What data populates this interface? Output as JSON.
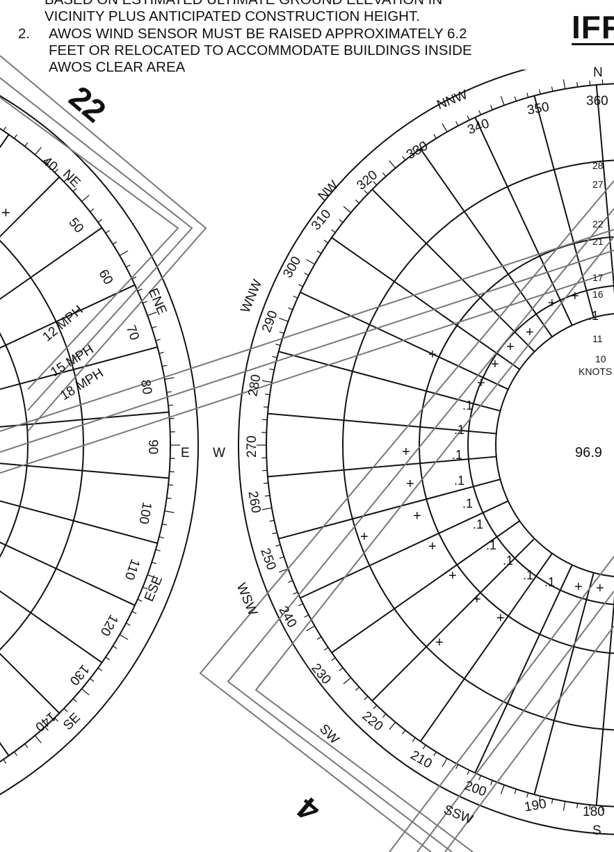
{
  "notes": {
    "line1": "BASED ON ESTIMATED ULTIMATE GROUND ELEVATION IN",
    "line2": "VICINITY PLUS ANTICIPATED CONSTRUCTION HEIGHT.",
    "item_num": "2.",
    "line3": "AWOS WIND SENSOR MUST BE RAISED APPROXIMATELY 6.2",
    "line4": "FEET OR RELOCATED TO ACCOMMODATE BUILDINGS INSIDE",
    "line5": "AWOS CLEAR AREA"
  },
  "header_fragment": "IFF",
  "runway_ends": {
    "left_upper": "22",
    "right_lower": "4"
  },
  "left_rose": {
    "degrees": [
      "40",
      "50",
      "60",
      "70",
      "80",
      "90",
      "100",
      "110",
      "120",
      "130",
      "140"
    ],
    "compass": [
      "NE",
      "ENE",
      "E",
      "ESE",
      "SE"
    ],
    "speeds": [
      "12 MPH",
      "15 MPH",
      "18 MPH"
    ]
  },
  "right_rose": {
    "degrees": [
      "180",
      "190",
      "200",
      "210",
      "220",
      "230",
      "240",
      "250",
      "260",
      "270",
      "280",
      "290",
      "300",
      "310",
      "320",
      "330",
      "340",
      "350",
      "360"
    ],
    "compass": [
      "S",
      "SSW",
      "SW",
      "WSW",
      "W",
      "WNW",
      "NW",
      "NNW",
      "N"
    ],
    "ring_labels": [
      "28",
      "27",
      "22",
      "21",
      "17",
      "16",
      "11",
      "10"
    ],
    "knots_label": "KNOTS",
    "center_value": "96.9",
    "cell_values": [
      ".1",
      ".1",
      ".1",
      ".1",
      ".1",
      ".1",
      ".1",
      ".1",
      ".1",
      ".1",
      ".1"
    ]
  }
}
